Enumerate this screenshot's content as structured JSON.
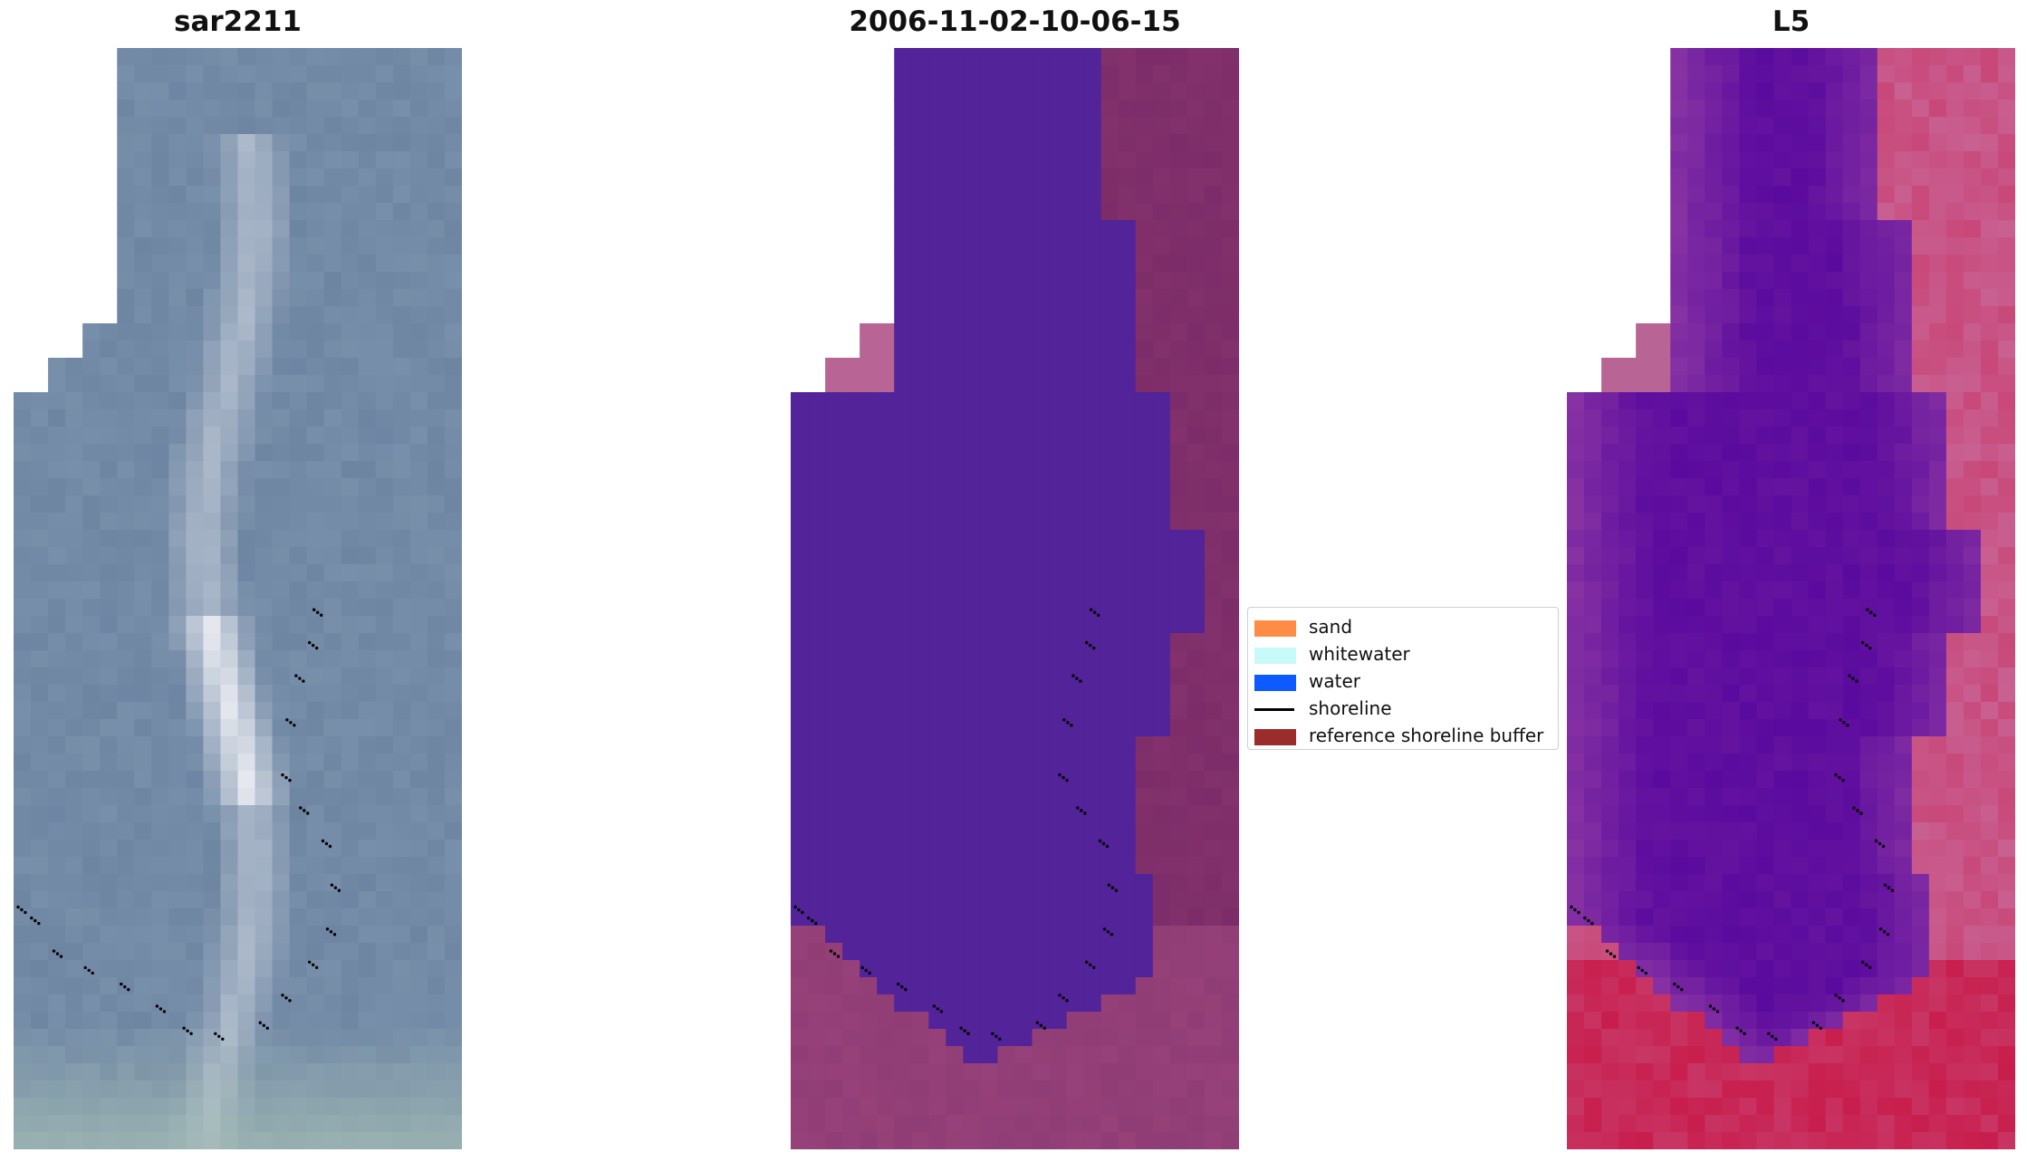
{
  "panels": [
    {
      "title": "sar2211",
      "kind": "satellite-rgb"
    },
    {
      "title": "2006-11-02-10-06-15",
      "kind": "classification"
    },
    {
      "title": "L5",
      "kind": "index"
    }
  ],
  "legend": {
    "items": [
      {
        "label": "sand",
        "color": "#ff8c45",
        "type": "patch"
      },
      {
        "label": "whitewater",
        "color": "#c8fafa",
        "type": "patch"
      },
      {
        "label": "water",
        "color": "#0d5bff",
        "type": "patch"
      },
      {
        "label": "shoreline",
        "color": "#000000",
        "type": "line"
      },
      {
        "label": "reference shoreline buffer",
        "color": "#9a2c2c",
        "type": "patch"
      }
    ]
  },
  "colors": {
    "classification_water": "#522399",
    "classification_land_left": "#b86495",
    "classification_land_right": "#7c2c68",
    "index_low": "#5a0a9e",
    "index_high": "#c8103e",
    "rgb_base": "#6f86a3",
    "rgb_bright": "#f4f4f8"
  }
}
